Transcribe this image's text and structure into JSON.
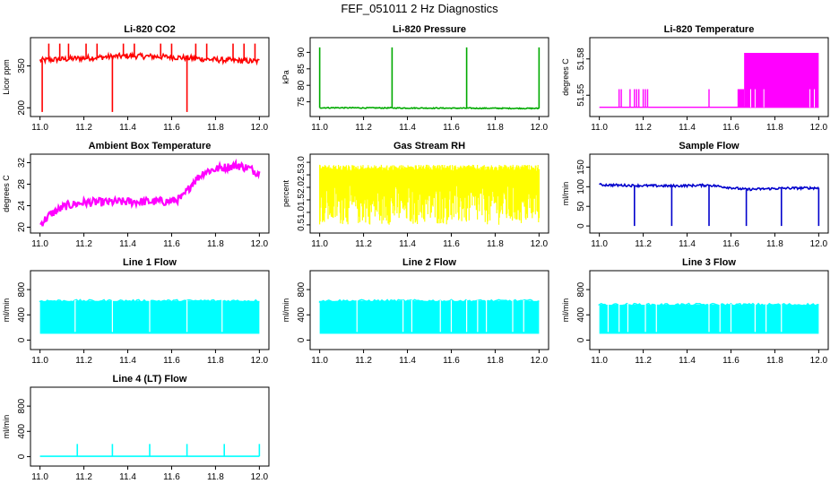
{
  "title": "FEF_051011  2 Hz Diagnostics",
  "chart_data": [
    {
      "id": "co2",
      "type": "line",
      "title": "Li-820 CO2",
      "ylabel": "Licor ppm",
      "color": "#ff0000",
      "xlim": [
        11.0,
        12.0
      ],
      "ylim": [
        180,
        440
      ],
      "xticks": [
        11.0,
        11.2,
        11.4,
        11.6,
        11.8,
        12.0
      ],
      "xtick_labels": [
        "11.0",
        "11.2",
        "11.4",
        "11.6",
        "11.8",
        "12.0"
      ],
      "yticks": [
        200,
        350
      ],
      "ytick_labels": [
        "200",
        "350"
      ],
      "series": [
        {
          "name": "CO2",
          "baseline": [
            [
              11.0,
              370
            ],
            [
              11.2,
              378
            ],
            [
              11.4,
              386
            ],
            [
              11.6,
              382
            ],
            [
              11.8,
              372
            ],
            [
              12.0,
              366
            ]
          ],
          "spikes_up": [
            11.04,
            11.09,
            11.13,
            11.21,
            11.26,
            11.38,
            11.43,
            11.55,
            11.6,
            11.71,
            11.76,
            11.88,
            11.93,
            11.98
          ],
          "spikes_down": [
            11.01,
            11.33,
            11.67
          ]
        }
      ]
    },
    {
      "id": "pressure",
      "type": "line",
      "title": "Li-820 Pressure",
      "ylabel": "kPa",
      "color": "#00aa00",
      "xlim": [
        11.0,
        12.0
      ],
      "ylim": [
        71.5,
        93.5
      ],
      "xticks": [
        11.0,
        11.2,
        11.4,
        11.6,
        11.8,
        12.0
      ],
      "xtick_labels": [
        "11.0",
        "11.2",
        "11.4",
        "11.6",
        "11.8",
        "12.0"
      ],
      "yticks": [
        75,
        80,
        85,
        90
      ],
      "ytick_labels": [
        "75",
        "80",
        "85",
        "90"
      ],
      "series": [
        {
          "name": "Pressure",
          "baseline": [
            [
              11.0,
              73.2
            ],
            [
              12.0,
              73.0
            ]
          ],
          "spikes_up": [
            11.0,
            11.33,
            11.67,
            12.0
          ]
        }
      ]
    },
    {
      "id": "temperature",
      "type": "line",
      "title": "Li-820 Temperature",
      "ylabel": "degrees C",
      "color": "#ff00ff",
      "xlim": [
        11.0,
        12.0
      ],
      "ylim": [
        51.535,
        51.595
      ],
      "xticks": [
        11.0,
        11.2,
        11.4,
        11.6,
        11.8,
        12.0
      ],
      "xtick_labels": [
        "11.0",
        "11.2",
        "11.4",
        "11.6",
        "11.8",
        "12.0"
      ],
      "yticks": [
        51.55,
        51.58
      ],
      "ytick_labels": [
        "51.55",
        "51.58"
      ],
      "series": [
        {
          "name": "Temperature",
          "low": 51.54,
          "high": 51.585,
          "mid": 51.555,
          "spikes_up": [
            11.09,
            11.1,
            11.14,
            11.16,
            11.17,
            11.18,
            11.2,
            11.21,
            11.22,
            11.5
          ],
          "band_start": 11.63,
          "band_end": 12.0
        }
      ]
    },
    {
      "id": "ambient",
      "type": "line",
      "title": "Ambient Box Temperature",
      "ylabel": "degrees C",
      "color": "#ff00ff",
      "xlim": [
        11.0,
        12.0
      ],
      "ylim": [
        19.5,
        33
      ],
      "xticks": [
        11.0,
        11.2,
        11.4,
        11.6,
        11.8,
        12.0
      ],
      "xtick_labels": [
        "11.0",
        "11.2",
        "11.4",
        "11.6",
        "11.8",
        "12.0"
      ],
      "yticks": [
        20,
        24,
        28,
        32
      ],
      "ytick_labels": [
        "20",
        "24",
        "28",
        "32"
      ],
      "series": [
        {
          "name": "Ambient",
          "baseline": [
            [
              11.0,
              20.5
            ],
            [
              11.05,
              22.5
            ],
            [
              11.12,
              24.0
            ],
            [
              11.2,
              24.6
            ],
            [
              11.35,
              24.7
            ],
            [
              11.6,
              24.8
            ],
            [
              11.65,
              25.5
            ],
            [
              11.7,
              28.5
            ],
            [
              11.75,
              30.3
            ],
            [
              11.82,
              31.0
            ],
            [
              11.9,
              31.5
            ],
            [
              11.95,
              31.0
            ],
            [
              12.0,
              30.0
            ]
          ]
        }
      ]
    },
    {
      "id": "rh",
      "type": "line",
      "title": "Gas Stream RH",
      "ylabel": "percent",
      "color": "#ffff00",
      "xlim": [
        11.0,
        12.0
      ],
      "ylim": [
        0.3,
        3.2
      ],
      "xticks": [
        11.0,
        11.2,
        11.4,
        11.6,
        11.8,
        12.0
      ],
      "xtick_labels": [
        "11.0",
        "11.2",
        "11.4",
        "11.6",
        "11.8",
        "12.0"
      ],
      "yticks": [
        0.5,
        1.0,
        1.5,
        2.0,
        2.5,
        3.0
      ],
      "ytick_labels": [
        "0.5",
        "1.0",
        "1.5",
        "2.0",
        "2.5",
        "3.0"
      ],
      "series": [
        {
          "name": "RH",
          "low": 0.5,
          "high": 2.9
        }
      ]
    },
    {
      "id": "sample",
      "type": "line",
      "title": "Sample Flow",
      "ylabel": "ml/min",
      "color": "#0000cc",
      "xlim": [
        11.0,
        12.0
      ],
      "ylim": [
        -10,
        175
      ],
      "xticks": [
        11.0,
        11.2,
        11.4,
        11.6,
        11.8,
        12.0
      ],
      "xtick_labels": [
        "11.0",
        "11.2",
        "11.4",
        "11.6",
        "11.8",
        "12.0"
      ],
      "yticks": [
        0,
        50,
        100,
        150
      ],
      "ytick_labels": [
        "0",
        "50",
        "100",
        "150"
      ],
      "series": [
        {
          "name": "Sample",
          "baseline": [
            [
              11.0,
              105
            ],
            [
              11.16,
              103
            ],
            [
              11.33,
              102
            ],
            [
              11.5,
              104
            ],
            [
              11.67,
              93
            ],
            [
              11.83,
              96
            ],
            [
              12.0,
              97
            ]
          ],
          "spikes_down": [
            11.16,
            11.33,
            11.5,
            11.67,
            11.83,
            12.0
          ]
        }
      ]
    },
    {
      "id": "line1",
      "type": "line",
      "title": "Line 1 Flow",
      "ylabel": "ml/min",
      "color": "#00ffff",
      "xlim": [
        11.0,
        12.0
      ],
      "ylim": [
        -100,
        1050
      ],
      "xticks": [
        11.0,
        11.2,
        11.4,
        11.6,
        11.8,
        12.0
      ],
      "xtick_labels": [
        "11.0",
        "11.2",
        "11.4",
        "11.6",
        "11.8",
        "12.0"
      ],
      "yticks": [
        0,
        400,
        800
      ],
      "ytick_labels": [
        "0",
        "400",
        "800"
      ],
      "series": [
        {
          "name": "Line 1",
          "low": 100,
          "high": 620,
          "gaps": [
            11.16,
            11.33,
            11.5,
            11.67,
            11.83
          ]
        }
      ]
    },
    {
      "id": "line2",
      "type": "line",
      "title": "Line 2 Flow",
      "ylabel": "ml/min",
      "color": "#00ffff",
      "xlim": [
        11.0,
        12.0
      ],
      "ylim": [
        -100,
        1050
      ],
      "xticks": [
        11.0,
        11.2,
        11.4,
        11.6,
        11.8,
        12.0
      ],
      "xtick_labels": [
        "11.0",
        "11.2",
        "11.4",
        "11.6",
        "11.8",
        "12.0"
      ],
      "yticks": [
        0,
        400,
        800
      ],
      "ytick_labels": [
        "0",
        "400",
        "800"
      ],
      "series": [
        {
          "name": "Line 2",
          "low": 100,
          "high": 620,
          "gaps": [
            11.17,
            11.38,
            11.42,
            11.55,
            11.6,
            11.67,
            11.72,
            11.76,
            11.88,
            11.93
          ]
        }
      ]
    },
    {
      "id": "line3",
      "type": "line",
      "title": "Line 3 Flow",
      "ylabel": "ml/min",
      "color": "#00ffff",
      "xlim": [
        11.0,
        12.0
      ],
      "ylim": [
        -100,
        1050
      ],
      "xticks": [
        11.0,
        11.2,
        11.4,
        11.6,
        11.8,
        12.0
      ],
      "xtick_labels": [
        "11.0",
        "11.2",
        "11.4",
        "11.6",
        "11.8",
        "12.0"
      ],
      "yticks": [
        0,
        400,
        800
      ],
      "ytick_labels": [
        "0",
        "400",
        "800"
      ],
      "series": [
        {
          "name": "Line 3",
          "low": 100,
          "high": 560,
          "gaps": [
            11.04,
            11.09,
            11.13,
            11.21,
            11.26,
            11.5,
            11.55,
            11.6,
            11.71,
            11.76,
            11.83
          ]
        }
      ]
    },
    {
      "id": "line4",
      "type": "line",
      "title": "Line 4 (LT) Flow",
      "ylabel": "ml/min",
      "color": "#00ffff",
      "xlim": [
        11.0,
        12.0
      ],
      "ylim": [
        -100,
        1050
      ],
      "xticks": [
        11.0,
        11.2,
        11.4,
        11.6,
        11.8,
        12.0
      ],
      "xtick_labels": [
        "11.0",
        "11.2",
        "11.4",
        "11.6",
        "11.8",
        "12.0"
      ],
      "yticks": [
        0,
        400,
        800
      ],
      "ytick_labels": [
        "0",
        "400",
        "800"
      ],
      "series": [
        {
          "name": "Line 4",
          "baseline": [
            [
              11.0,
              5
            ],
            [
              12.0,
              5
            ]
          ],
          "spikes_up": [
            11.17,
            11.33,
            11.5,
            11.67,
            11.84,
            12.0
          ],
          "spike_value": 200
        }
      ]
    }
  ]
}
